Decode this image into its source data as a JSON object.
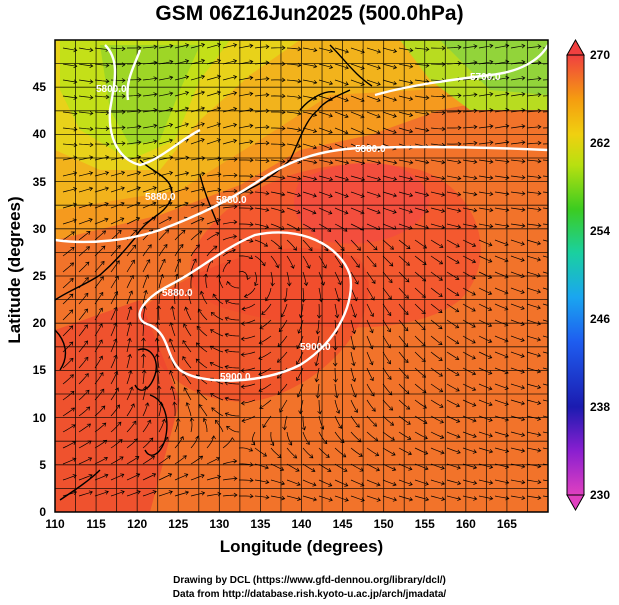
{
  "title": "GSM 06Z16Jun2025 (500.0hPa)",
  "x_axis": {
    "label": "Longitude (degrees)",
    "ticks": [
      "110",
      "115",
      "120",
      "125",
      "130",
      "135",
      "140",
      "145",
      "150",
      "155",
      "160",
      "165"
    ]
  },
  "y_axis": {
    "label": "Latitude  (degrees)",
    "ticks": [
      "0",
      "5",
      "10",
      "15",
      "20",
      "25",
      "30",
      "35",
      "40",
      "45"
    ]
  },
  "colorbar": {
    "ticks": [
      "270",
      "262",
      "254",
      "246",
      "238",
      "230"
    ],
    "range": [
      230,
      270
    ]
  },
  "contour_labels": [
    "5880.0",
    "5880.0",
    "5880.0",
    "5880.0",
    "5900.0",
    "5900.0",
    "5800.0",
    "5700.0"
  ],
  "credits": {
    "line1": "Drawing by DCL (https://www.gfd-dennou.org/library/dcl/)",
    "line2": "Data from http://database.rish.kyoto-u.ac.jp/arch/jmadata/"
  }
}
